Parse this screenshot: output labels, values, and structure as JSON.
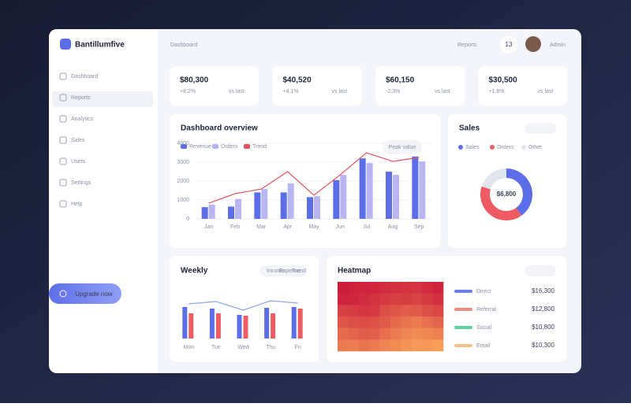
{
  "sidebar": {
    "brand": "Bantillumfive",
    "items": [
      "Dashboard",
      "Reports",
      "Analytics",
      "Sales",
      "Users",
      "Settings",
      "Help"
    ],
    "cta": "Upgrade now"
  },
  "topbar": {
    "breadcrumb": "Dashboard",
    "link": "Reports",
    "badge": "13",
    "user": "Admin"
  },
  "kpis": [
    {
      "value": "$80,300",
      "sub": "+8.2%",
      "note": "vs last"
    },
    {
      "value": "$40,520",
      "sub": "+4.1%",
      "note": "vs last"
    },
    {
      "value": "$60,150",
      "sub": "-2.3%",
      "note": "vs last"
    },
    {
      "value": "$30,500",
      "sub": "+1.6%",
      "note": "vs last"
    }
  ],
  "chart_data": [
    {
      "type": "bar",
      "title": "Dashboard overview",
      "tooltip": "Peak value",
      "categories": [
        "Jan",
        "Feb",
        "Mar",
        "Apr",
        "May",
        "Jun",
        "Jul",
        "Aug",
        "Sep"
      ],
      "series": [
        {
          "name": "Revenue",
          "color": "#5b6ee8",
          "values": [
            620,
            650,
            1400,
            1400,
            1150,
            2050,
            3200,
            2500,
            3300
          ]
        },
        {
          "name": "Orders",
          "color": "#b9b4f2",
          "values": [
            750,
            1050,
            1580,
            1880,
            1200,
            2330,
            2950,
            2330,
            3040
          ]
        },
        {
          "name": "Trend",
          "type": "line",
          "color": "#e8505b",
          "values": [
            830,
            1330,
            1580,
            2500,
            1250,
            2330,
            3500,
            3040,
            3250
          ]
        }
      ],
      "ylim": [
        0,
        4000
      ],
      "yticks": [
        0,
        1000,
        2000,
        3000,
        4000
      ]
    },
    {
      "type": "pie",
      "title": "Sales",
      "center_label": "$6,800",
      "categories": [
        "Sales",
        "Orders",
        "Other"
      ],
      "values": [
        40,
        40,
        20
      ],
      "colors": [
        "#5b6ee8",
        "#ef5b62",
        "#e1e6ee"
      ]
    },
    {
      "type": "bar",
      "title": "Weekly",
      "categories": [
        "Mon",
        "Tue",
        "Wed",
        "Thu",
        "Fri"
      ],
      "series": [
        {
          "name": "Income",
          "color": "#5b6ee8",
          "values": [
            40,
            38,
            30,
            39,
            40
          ]
        },
        {
          "name": "Expense",
          "color": "#ef5b62",
          "values": [
            32,
            32,
            29,
            32,
            38
          ]
        },
        {
          "name": "Trend",
          "type": "line",
          "color": "#8ea6f0",
          "values": [
            44,
            47,
            36,
            48,
            45
          ]
        }
      ],
      "ylim": [
        0,
        50
      ]
    },
    {
      "type": "heatmap",
      "title": "Heatmap",
      "color_low": "#f9a55a",
      "color_high": "#c9153a",
      "zlim": [
        0,
        100
      ],
      "values": [
        [
          95,
          92,
          90,
          88,
          85,
          82,
          80,
          78,
          85,
          90
        ],
        [
          90,
          88,
          85,
          80,
          75,
          70,
          72,
          68,
          75,
          82
        ],
        [
          70,
          72,
          78,
          74,
          60,
          55,
          50,
          52,
          60,
          65
        ],
        [
          55,
          60,
          62,
          58,
          52,
          40,
          35,
          30,
          38,
          45
        ],
        [
          40,
          45,
          50,
          48,
          38,
          30,
          22,
          18,
          20,
          25
        ],
        [
          30,
          28,
          35,
          30,
          22,
          18,
          12,
          8,
          10,
          5
        ]
      ],
      "legend": [
        {
          "name": "Direct",
          "color": "#6c7ce8",
          "value": "$16,300"
        },
        {
          "name": "Referral",
          "color": "#f28b82",
          "value": "$12,800"
        },
        {
          "name": "Social",
          "color": "#5fd3a4",
          "value": "$10,800"
        },
        {
          "name": "Email",
          "color": "#f7c08a",
          "value": "$10,300"
        }
      ]
    }
  ]
}
